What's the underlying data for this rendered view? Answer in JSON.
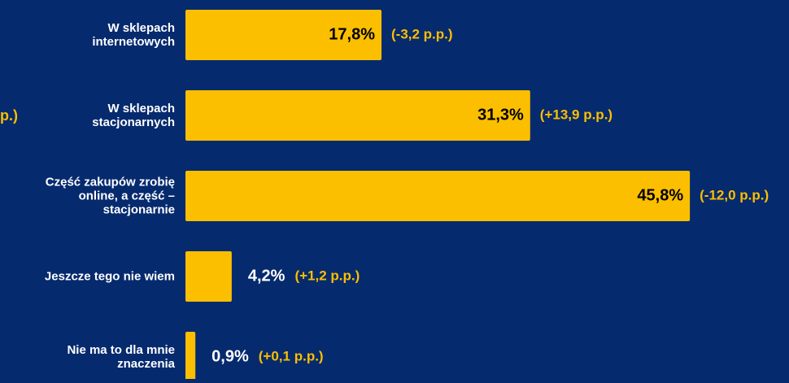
{
  "chart_data": {
    "type": "bar",
    "orientation": "horizontal",
    "annotation": "p.)",
    "categories": [
      "W sklepach\ninternetowych",
      "W sklepach\nstacjonarnych",
      "Część zakupów zrobię\nonline, a część –\nstacjonarnie",
      "Jeszcze tego nie wiem",
      "Nie ma to dla mnie\nznaczenia"
    ],
    "values": [
      17.8,
      31.3,
      45.8,
      4.2,
      0.9
    ],
    "value_labels": [
      "17,8%",
      "31,3%",
      "45,8%",
      "4,2%",
      "0,9%"
    ],
    "changes": [
      -3.2,
      13.9,
      -12.0,
      1.2,
      0.1
    ],
    "change_labels": [
      "(-3,2 p.p.)",
      "(+13,9 p.p.)",
      "(-12,0 p.p.)",
      "(+1,2 p.p.)",
      "(+0,1 p.p.)"
    ],
    "color": "#fbbf00",
    "xlim": [
      0,
      50
    ]
  }
}
